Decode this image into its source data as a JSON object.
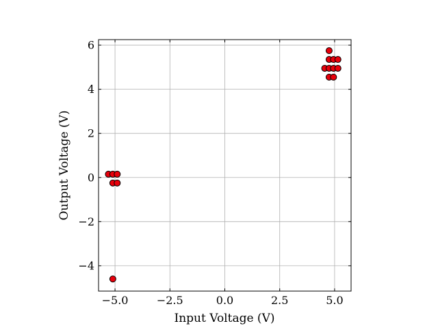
{
  "chart_data": {
    "type": "scatter",
    "xlabel": "Input Voltage (V)",
    "ylabel": "Output Voltage (V)",
    "xlim": [
      -5.75,
      5.75
    ],
    "ylim": [
      -5.15,
      6.25
    ],
    "xticks": [
      -5.0,
      -2.5,
      0.0,
      2.5,
      5.0
    ],
    "xtick_labels": [
      "−5.0",
      "−2.5",
      "0.0",
      "2.5",
      "5.0"
    ],
    "yticks": [
      -4,
      -2,
      0,
      2,
      4,
      6
    ],
    "ytick_labels": [
      "−4",
      "−2",
      "0",
      "2",
      "4",
      "6"
    ],
    "grid": true,
    "marker_face_color": "#e8000b",
    "marker_edge_color": "#000000",
    "points": [
      {
        "x": -5.3,
        "y": 0.15
      },
      {
        "x": -5.1,
        "y": 0.15
      },
      {
        "x": -4.9,
        "y": 0.15
      },
      {
        "x": -5.1,
        "y": -0.25
      },
      {
        "x": -4.9,
        "y": -0.25
      },
      {
        "x": -5.1,
        "y": -4.6
      },
      {
        "x": 4.75,
        "y": 5.75
      },
      {
        "x": 4.75,
        "y": 5.35
      },
      {
        "x": 4.95,
        "y": 5.35
      },
      {
        "x": 5.15,
        "y": 5.35
      },
      {
        "x": 4.55,
        "y": 4.95
      },
      {
        "x": 4.75,
        "y": 4.95
      },
      {
        "x": 4.95,
        "y": 4.95
      },
      {
        "x": 5.15,
        "y": 4.95
      },
      {
        "x": 4.75,
        "y": 4.55
      },
      {
        "x": 4.95,
        "y": 4.55
      }
    ]
  }
}
